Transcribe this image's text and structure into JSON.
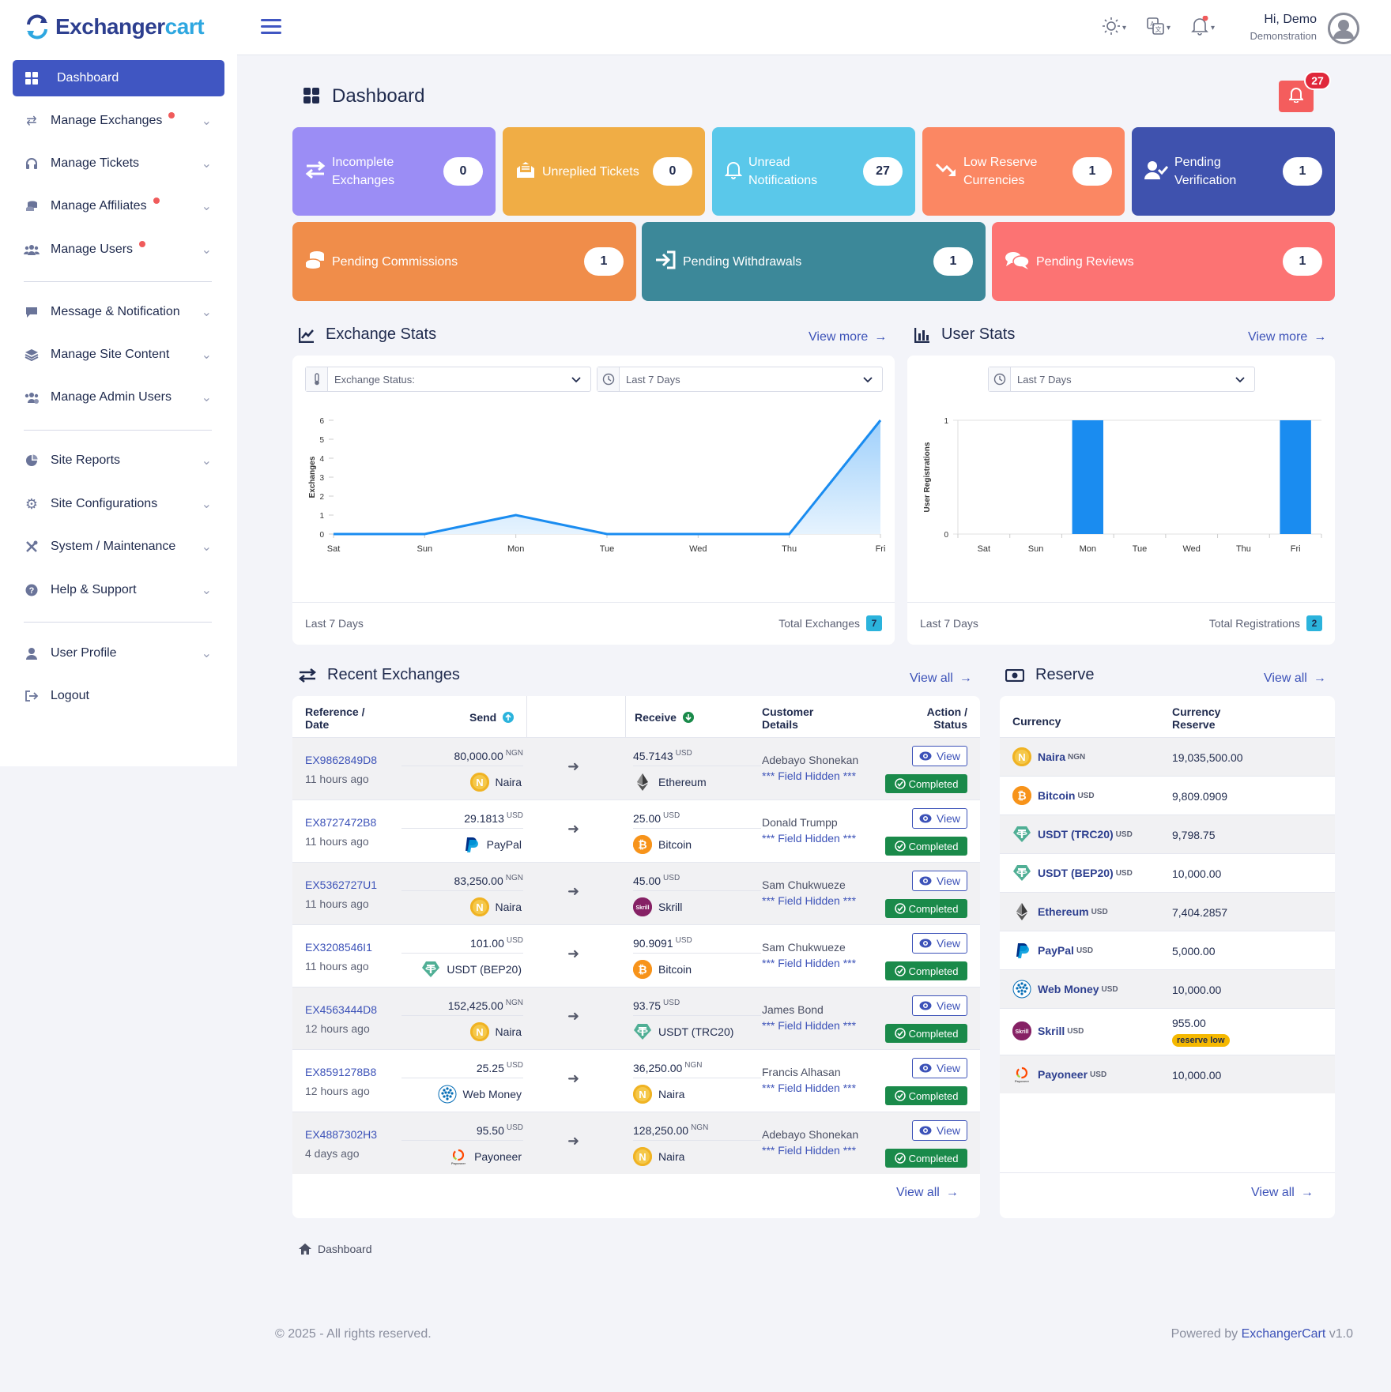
{
  "brand": {
    "part1": "Exchanger",
    "part2": "cart"
  },
  "sidebar": {
    "active": "Dashboard",
    "items": [
      {
        "label": "Manage Exchanges",
        "dot": true
      },
      {
        "label": "Manage Tickets",
        "dot": false
      },
      {
        "label": "Manage Affiliates",
        "dot": true
      },
      {
        "label": "Manage Users",
        "dot": true
      },
      {
        "label": "Message & Notification",
        "dot": false
      },
      {
        "label": "Manage Site Content",
        "dot": false
      },
      {
        "label": "Manage Admin Users",
        "dot": false
      },
      {
        "label": "Site Reports",
        "dot": false
      },
      {
        "label": "Site Configurations",
        "dot": false
      },
      {
        "label": "System / Maintenance",
        "dot": false
      },
      {
        "label": "Help & Support",
        "dot": false
      },
      {
        "label": "User Profile",
        "dot": false
      },
      {
        "label": "Logout",
        "dot": false
      }
    ]
  },
  "header": {
    "greeting": "Hi, Demo",
    "role": "Demonstration"
  },
  "page": {
    "title": "Dashboard",
    "notif_count": "27"
  },
  "cards": [
    {
      "label": "Incomplete Exchanges",
      "count": "0",
      "color": "#9b8df5"
    },
    {
      "label": "Unreplied Tickets",
      "count": "0",
      "color": "#f0ad45"
    },
    {
      "label": "Unread Notifications",
      "count": "27",
      "color": "#5ac8ea"
    },
    {
      "label": "Low Reserve Currencies",
      "count": "1",
      "color": "#fb8763"
    },
    {
      "label": "Pending Verification",
      "count": "1",
      "color": "#3f52ae"
    },
    {
      "label": "Pending Commissions",
      "count": "1",
      "color": "#f08d4a"
    },
    {
      "label": "Pending Withdrawals",
      "count": "1",
      "color": "#3c8899"
    },
    {
      "label": "Pending Reviews",
      "count": "1",
      "color": "#fc7373"
    }
  ],
  "exchange_stats": {
    "title": "Exchange Stats",
    "view_more": "View more",
    "status_select": "Exchange Status:",
    "period_select": "Last 7 Days",
    "foot_left": "Last 7 Days",
    "foot_label": "Total Exchanges",
    "total": "7"
  },
  "user_stats": {
    "title": "User Stats",
    "view_more": "View more",
    "period_select": "Last 7 Days",
    "foot_left": "Last 7 Days",
    "foot_label": "Total Registrations",
    "total": "2"
  },
  "chart_data": [
    {
      "type": "area",
      "x": [
        "Sat",
        "Sun",
        "Mon",
        "Tue",
        "Wed",
        "Thu",
        "Fri"
      ],
      "values": [
        0,
        0,
        1,
        0,
        0,
        0,
        6
      ],
      "ylabel": "Exchanges",
      "ylim": [
        0,
        6
      ],
      "yticks": [
        0,
        1,
        2,
        3,
        4,
        5,
        6
      ],
      "color": "#1a8cf0"
    },
    {
      "type": "bar",
      "categories": [
        "Sat",
        "Sun",
        "Mon",
        "Tue",
        "Wed",
        "Thu",
        "Fri"
      ],
      "values": [
        0,
        0,
        1,
        0,
        0,
        0,
        1
      ],
      "ylabel": "User Registrations",
      "ylim": [
        0,
        1
      ],
      "yticks": [
        0,
        1
      ],
      "color": "#1a8cf0"
    }
  ],
  "recent": {
    "title": "Recent Exchanges",
    "view_all": "View all",
    "headers": {
      "ref": "Reference /",
      "date": "Date",
      "send": "Send",
      "receive": "Receive",
      "cust1": "Customer",
      "cust2": "Details",
      "act1": "Action /",
      "act2": "Status"
    },
    "view_label": "View",
    "status_label": "Completed",
    "rows": [
      {
        "ref": "EX9862849D8",
        "ago": "11 hours ago",
        "send_amt": "80,000.00",
        "send_cc": "NGN",
        "send_cur": "Naira",
        "send_ic": "naira",
        "recv_amt": "45.7143",
        "recv_cc": "USD",
        "recv_cur": "Ethereum",
        "recv_ic": "eth",
        "cust": "Adebayo Shonekan",
        "hidden": "*** Field Hidden ***"
      },
      {
        "ref": "EX8727472B8",
        "ago": "11 hours ago",
        "send_amt": "29.1813",
        "send_cc": "USD",
        "send_cur": "PayPal",
        "send_ic": "paypal",
        "recv_amt": "25.00",
        "recv_cc": "USD",
        "recv_cur": "Bitcoin",
        "recv_ic": "btc",
        "cust": "Donald Trumpp",
        "hidden": "*** Field Hidden ***"
      },
      {
        "ref": "EX5362727U1",
        "ago": "11 hours ago",
        "send_amt": "83,250.00",
        "send_cc": "NGN",
        "send_cur": "Naira",
        "send_ic": "naira",
        "recv_amt": "45.00",
        "recv_cc": "USD",
        "recv_cur": "Skrill",
        "recv_ic": "skrill",
        "cust": "Sam Chukwueze",
        "hidden": "*** Field Hidden ***"
      },
      {
        "ref": "EX3208546I1",
        "ago": "11 hours ago",
        "send_amt": "101.00",
        "send_cc": "USD",
        "send_cur": "USDT (BEP20)",
        "send_ic": "usdt",
        "recv_amt": "90.9091",
        "recv_cc": "USD",
        "recv_cur": "Bitcoin",
        "recv_ic": "btc",
        "cust": "Sam Chukwueze",
        "hidden": "*** Field Hidden ***"
      },
      {
        "ref": "EX4563444D8",
        "ago": "12 hours ago",
        "send_amt": "152,425.00",
        "send_cc": "NGN",
        "send_cur": "Naira",
        "send_ic": "naira",
        "recv_amt": "93.75",
        "recv_cc": "USD",
        "recv_cur": "USDT (TRC20)",
        "recv_ic": "usdt",
        "cust": "James Bond",
        "hidden": "*** Field Hidden ***"
      },
      {
        "ref": "EX8591278B8",
        "ago": "12 hours ago",
        "send_amt": "25.25",
        "send_cc": "USD",
        "send_cur": "Web Money",
        "send_ic": "webmoney",
        "recv_amt": "36,250.00",
        "recv_cc": "NGN",
        "recv_cur": "Naira",
        "recv_ic": "naira",
        "cust": "Francis Alhasan",
        "hidden": "*** Field Hidden ***"
      },
      {
        "ref": "EX4887302H3",
        "ago": "4 days ago",
        "send_amt": "95.50",
        "send_cc": "USD",
        "send_cur": "Payoneer",
        "send_ic": "payoneer",
        "recv_amt": "128,250.00",
        "recv_cc": "NGN",
        "recv_cur": "Naira",
        "recv_ic": "naira",
        "cust": "Adebayo Shonekan",
        "hidden": "*** Field Hidden ***"
      }
    ]
  },
  "reserve": {
    "title": "Reserve",
    "view_all": "View all",
    "headers": {
      "currency": "Currency",
      "res1": "Currency",
      "res2": "Reserve"
    },
    "low_label": "reserve low",
    "rows": [
      {
        "name": "Naira",
        "cc": "NGN",
        "value": "19,035,500.00",
        "ic": "naira",
        "low": false
      },
      {
        "name": "Bitcoin",
        "cc": "USD",
        "value": "9,809.0909",
        "ic": "btc",
        "low": false
      },
      {
        "name": "USDT (TRC20)",
        "cc": "USD",
        "value": "9,798.75",
        "ic": "usdt",
        "low": false
      },
      {
        "name": "USDT (BEP20)",
        "cc": "USD",
        "value": "10,000.00",
        "ic": "usdt",
        "low": false
      },
      {
        "name": "Ethereum",
        "cc": "USD",
        "value": "7,404.2857",
        "ic": "eth",
        "low": false
      },
      {
        "name": "PayPal",
        "cc": "USD",
        "value": "5,000.00",
        "ic": "paypal",
        "low": false
      },
      {
        "name": "Web Money",
        "cc": "USD",
        "value": "10,000.00",
        "ic": "webmoney",
        "low": false
      },
      {
        "name": "Skrill",
        "cc": "USD",
        "value": "955.00",
        "ic": "skrill",
        "low": true
      },
      {
        "name": "Payoneer",
        "cc": "USD",
        "value": "10,000.00",
        "ic": "payoneer",
        "low": false
      }
    ]
  },
  "breadcrumb": "Dashboard",
  "footer": {
    "copyright": "© 2025 - All rights reserved.",
    "powered": "Powered by",
    "brand": "ExchangerCart",
    "version": "v1.0"
  }
}
